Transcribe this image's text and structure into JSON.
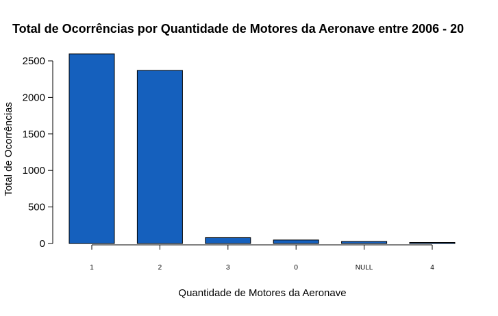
{
  "chart_data": {
    "type": "bar",
    "title": "Total de Ocorrências por Quantidade de Motores da Aeronave entre  2006 - 20",
    "xlabel": "Quantidade de Motores da Aeronave",
    "ylabel": "Total de Ocorrências",
    "categories": [
      "1",
      "2",
      "3",
      "0",
      "NULL",
      "4"
    ],
    "values": [
      2595,
      2370,
      80,
      48,
      28,
      14
    ],
    "ylim": [
      0,
      2500
    ],
    "yticks": [
      "0",
      "500",
      "1000",
      "1500",
      "2000",
      "2500"
    ],
    "bar_color": "#1560bd",
    "grid": false,
    "legend": "none"
  }
}
